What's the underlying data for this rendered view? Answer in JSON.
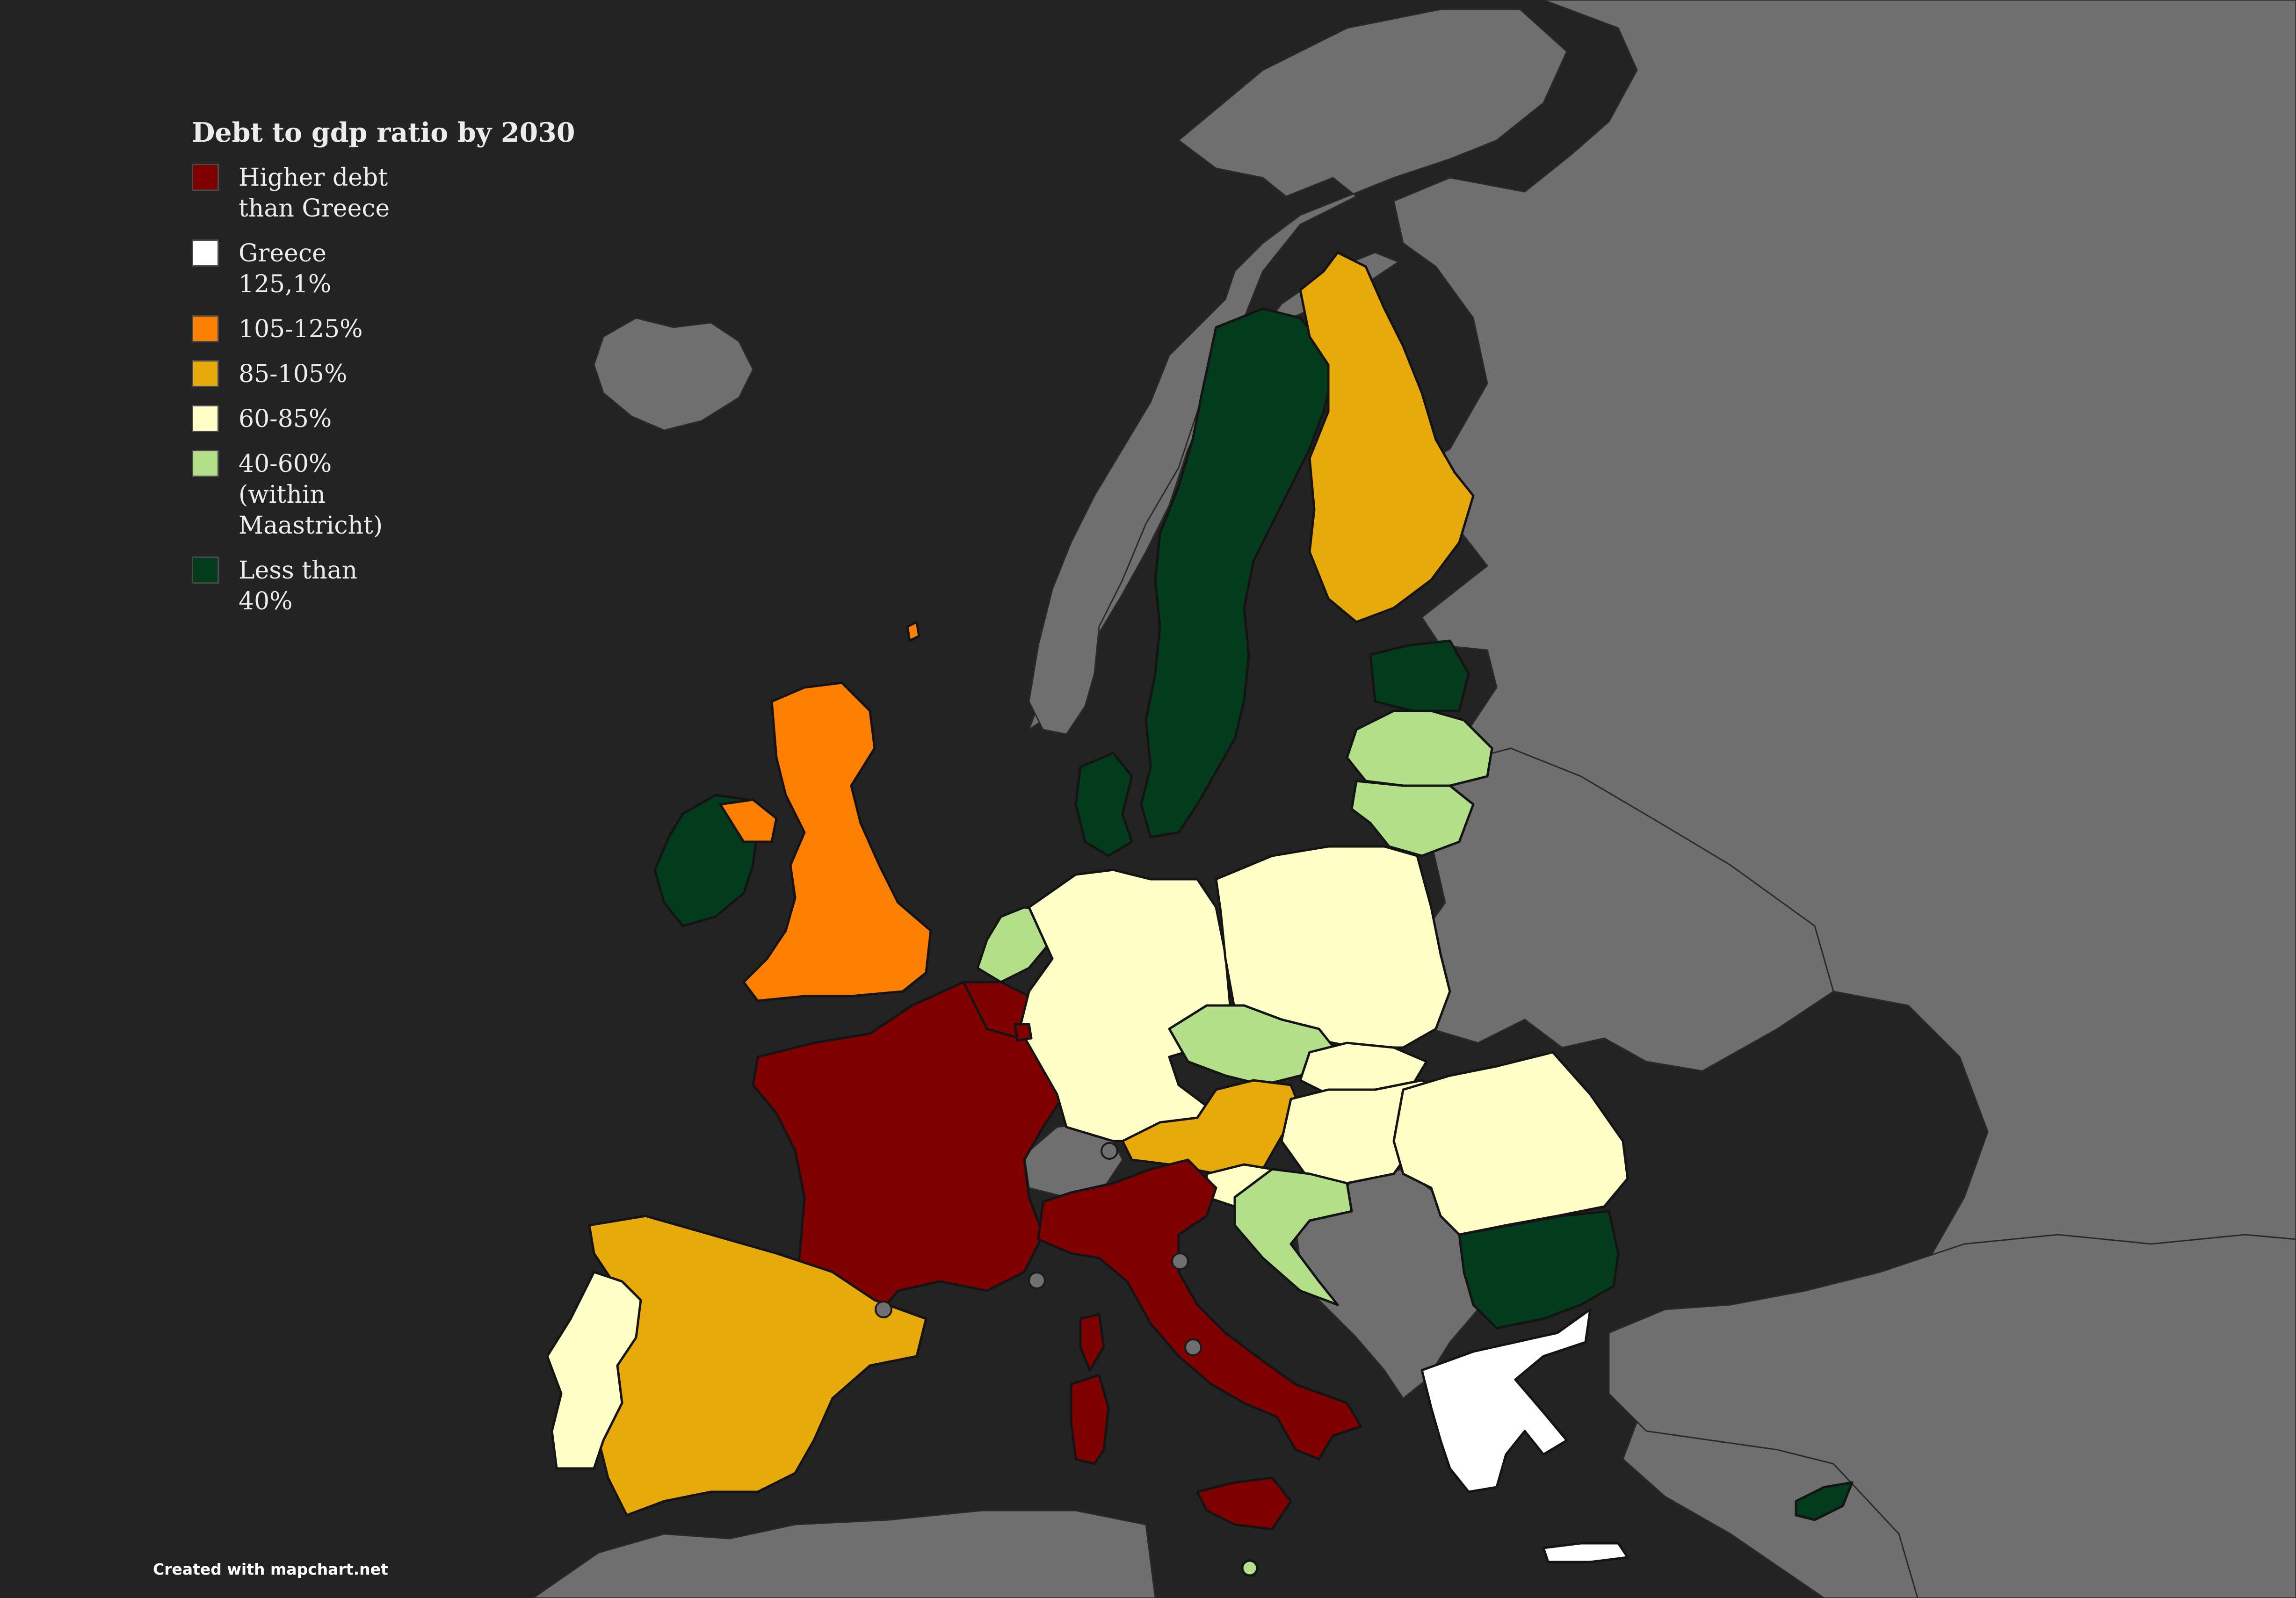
{
  "map": {
    "background": "#232323",
    "land_other_color": "#6f6f6f",
    "legend": {
      "title": "Debt to gdp ratio by 2030",
      "items": [
        {
          "label": "Higher debt than Greece",
          "color": "#800000"
        },
        {
          "label": "Greece 125,1%",
          "color": "#ffffff"
        },
        {
          "label": "105-125%",
          "color": "#ff7f00"
        },
        {
          "label": "85-105%",
          "color": "#e8a90a"
        },
        {
          "label": "60-85%",
          "color": "#ffffc8"
        },
        {
          "label": "40-60% (within Maastricht)",
          "color": "#b3df8a"
        },
        {
          "label": "Less than 40%",
          "color": "#023c1c"
        }
      ]
    },
    "credit": "Created with mapchart.net"
  }
}
